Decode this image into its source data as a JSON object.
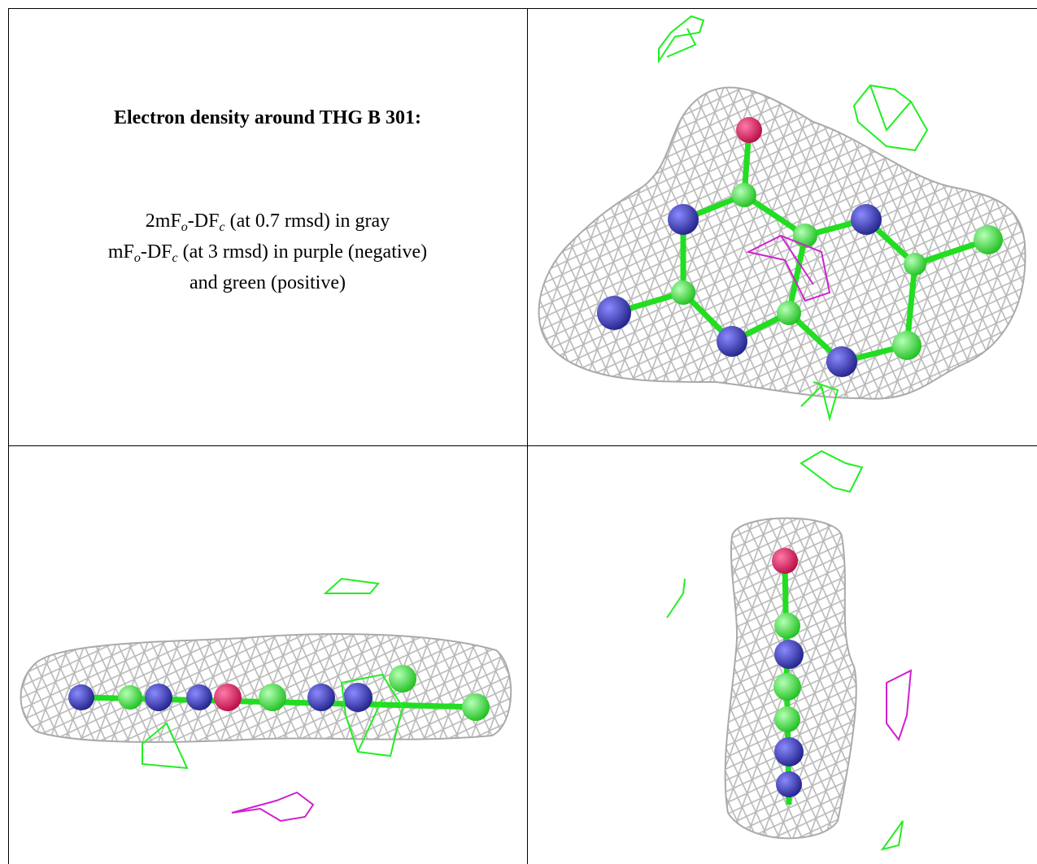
{
  "panel": {
    "title": "Electron density around THG B 301:",
    "caption": [
      [
        "2mF",
        "o",
        "-DF",
        "c",
        " (at 0.7 rmsd) in gray"
      ],
      [
        "mF",
        "o",
        "-DF",
        "c",
        " (at 3 rmsd) in purple (negative)"
      ],
      [
        "and green (positive)"
      ]
    ]
  }
}
